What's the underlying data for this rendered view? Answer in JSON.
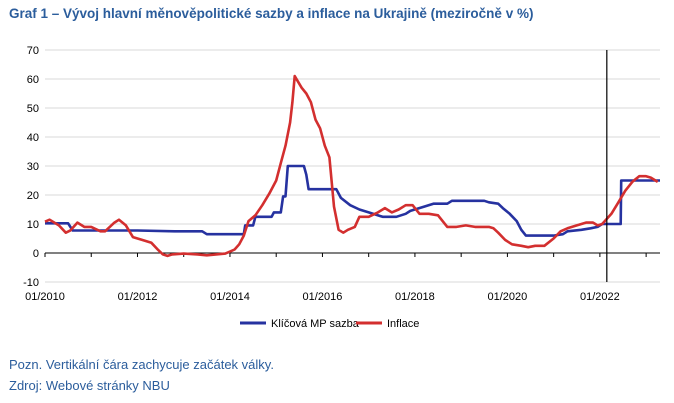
{
  "title": "Graf 1 – Vývoj hlavní měnověpolitické sazby a inflace na Ukrajině (meziročně v %)",
  "notes": {
    "note": "Pozn. Vertikální čára zachycuje začátek války.",
    "source": "Zdroj: Webové stránky NBU"
  },
  "chart_data": {
    "type": "line",
    "title": "Graf 1 – Vývoj hlavní měnověpolitické sazby a inflace na Ukrajině (meziročně v %)",
    "xlabel": "",
    "ylabel": "",
    "ylim": [
      -10,
      70
    ],
    "yticks": [
      -10,
      0,
      10,
      20,
      30,
      40,
      50,
      60,
      70
    ],
    "xlim": [
      2010.0,
      2023.3
    ],
    "xticks": [
      {
        "value": 2010,
        "label": "01/2010"
      },
      {
        "value": 2012,
        "label": "01/2012"
      },
      {
        "value": 2014,
        "label": "01/2014"
      },
      {
        "value": 2016,
        "label": "01/2016"
      },
      {
        "value": 2018,
        "label": "01/2018"
      },
      {
        "value": 2020,
        "label": "01/2020"
      },
      {
        "value": 2022,
        "label": "01/2022"
      }
    ],
    "grid": "horizontal",
    "legend_position": "bottom",
    "war_start": 2022.15,
    "series": [
      {
        "name": "Klíčová MP sazba",
        "color": "#2632a0",
        "points": [
          [
            2010.0,
            10.25
          ],
          [
            2010.5,
            10.25
          ],
          [
            2010.6,
            7.75
          ],
          [
            2012.0,
            7.75
          ],
          [
            2012.8,
            7.5
          ],
          [
            2013.4,
            7.5
          ],
          [
            2013.5,
            6.5
          ],
          [
            2014.0,
            6.5
          ],
          [
            2014.3,
            6.5
          ],
          [
            2014.33,
            9.5
          ],
          [
            2014.5,
            9.5
          ],
          [
            2014.55,
            12.5
          ],
          [
            2014.9,
            12.5
          ],
          [
            2014.95,
            14.0
          ],
          [
            2015.1,
            14.0
          ],
          [
            2015.15,
            19.5
          ],
          [
            2015.2,
            19.5
          ],
          [
            2015.25,
            30.0
          ],
          [
            2015.6,
            30.0
          ],
          [
            2015.65,
            27.0
          ],
          [
            2015.7,
            22.0
          ],
          [
            2016.3,
            22.0
          ],
          [
            2016.4,
            19.0
          ],
          [
            2016.6,
            16.5
          ],
          [
            2016.8,
            15.0
          ],
          [
            2017.0,
            14.0
          ],
          [
            2017.3,
            12.5
          ],
          [
            2017.6,
            12.5
          ],
          [
            2017.8,
            13.5
          ],
          [
            2017.9,
            14.5
          ],
          [
            2018.2,
            16.0
          ],
          [
            2018.4,
            17.0
          ],
          [
            2018.7,
            17.0
          ],
          [
            2018.8,
            18.0
          ],
          [
            2019.5,
            18.0
          ],
          [
            2019.6,
            17.5
          ],
          [
            2019.8,
            17.0
          ],
          [
            2019.9,
            15.5
          ],
          [
            2020.05,
            13.5
          ],
          [
            2020.2,
            11.0
          ],
          [
            2020.3,
            8.0
          ],
          [
            2020.4,
            6.0
          ],
          [
            2021.0,
            6.0
          ],
          [
            2021.2,
            6.5
          ],
          [
            2021.3,
            7.5
          ],
          [
            2021.6,
            8.0
          ],
          [
            2021.8,
            8.5
          ],
          [
            2021.95,
            9.0
          ],
          [
            2022.05,
            10.0
          ],
          [
            2022.3,
            10.0
          ],
          [
            2022.45,
            10.0
          ],
          [
            2022.46,
            25.0
          ],
          [
            2023.3,
            25.0
          ]
        ]
      },
      {
        "name": "Inflace",
        "color": "#d32f2f",
        "points": [
          [
            2010.0,
            10.8
          ],
          [
            2010.1,
            11.5
          ],
          [
            2010.3,
            9.5
          ],
          [
            2010.45,
            7.0
          ],
          [
            2010.55,
            7.8
          ],
          [
            2010.7,
            10.5
          ],
          [
            2010.85,
            9.0
          ],
          [
            2011.0,
            9.0
          ],
          [
            2011.2,
            7.5
          ],
          [
            2011.3,
            7.5
          ],
          [
            2011.5,
            10.5
          ],
          [
            2011.6,
            11.5
          ],
          [
            2011.75,
            9.5
          ],
          [
            2011.9,
            5.5
          ],
          [
            2012.1,
            4.5
          ],
          [
            2012.3,
            3.5
          ],
          [
            2012.45,
            1.0
          ],
          [
            2012.55,
            -0.5
          ],
          [
            2012.65,
            -1.0
          ],
          [
            2012.75,
            -0.5
          ],
          [
            2013.0,
            -0.2
          ],
          [
            2013.3,
            -0.5
          ],
          [
            2013.5,
            -0.8
          ],
          [
            2013.7,
            -0.5
          ],
          [
            2013.9,
            -0.2
          ],
          [
            2014.0,
            0.5
          ],
          [
            2014.1,
            1.2
          ],
          [
            2014.2,
            3.0
          ],
          [
            2014.3,
            6.0
          ],
          [
            2014.4,
            11.0
          ],
          [
            2014.55,
            13.0
          ],
          [
            2014.7,
            16.5
          ],
          [
            2014.85,
            20.5
          ],
          [
            2015.0,
            25.0
          ],
          [
            2015.1,
            31.0
          ],
          [
            2015.2,
            37.0
          ],
          [
            2015.3,
            45.0
          ],
          [
            2015.35,
            52.0
          ],
          [
            2015.4,
            61.0
          ],
          [
            2015.55,
            57.0
          ],
          [
            2015.65,
            55.0
          ],
          [
            2015.75,
            52.0
          ],
          [
            2015.85,
            46.0
          ],
          [
            2015.95,
            43.0
          ],
          [
            2016.05,
            37.0
          ],
          [
            2016.15,
            33.0
          ],
          [
            2016.25,
            16.0
          ],
          [
            2016.35,
            8.0
          ],
          [
            2016.45,
            7.0
          ],
          [
            2016.55,
            8.0
          ],
          [
            2016.7,
            9.0
          ],
          [
            2016.8,
            12.5
          ],
          [
            2017.0,
            12.5
          ],
          [
            2017.2,
            14.0
          ],
          [
            2017.35,
            15.5
          ],
          [
            2017.5,
            14.0
          ],
          [
            2017.65,
            15.0
          ],
          [
            2017.8,
            16.5
          ],
          [
            2017.95,
            16.5
          ],
          [
            2018.1,
            13.5
          ],
          [
            2018.3,
            13.5
          ],
          [
            2018.5,
            13.0
          ],
          [
            2018.7,
            9.0
          ],
          [
            2018.9,
            9.0
          ],
          [
            2019.1,
            9.5
          ],
          [
            2019.3,
            9.0
          ],
          [
            2019.5,
            9.0
          ],
          [
            2019.6,
            9.0
          ],
          [
            2019.7,
            8.5
          ],
          [
            2019.8,
            7.0
          ],
          [
            2019.95,
            4.5
          ],
          [
            2020.1,
            3.0
          ],
          [
            2020.3,
            2.5
          ],
          [
            2020.45,
            2.0
          ],
          [
            2020.6,
            2.5
          ],
          [
            2020.8,
            2.5
          ],
          [
            2021.0,
            5.0
          ],
          [
            2021.15,
            7.5
          ],
          [
            2021.3,
            8.5
          ],
          [
            2021.5,
            9.5
          ],
          [
            2021.7,
            10.5
          ],
          [
            2021.85,
            10.5
          ],
          [
            2021.95,
            9.5
          ],
          [
            2022.05,
            10.0
          ],
          [
            2022.25,
            13.5
          ],
          [
            2022.4,
            17.5
          ],
          [
            2022.55,
            21.5
          ],
          [
            2022.7,
            24.5
          ],
          [
            2022.85,
            26.5
          ],
          [
            2023.0,
            26.5
          ],
          [
            2023.1,
            26.0
          ],
          [
            2023.25,
            24.5
          ]
        ]
      }
    ]
  }
}
